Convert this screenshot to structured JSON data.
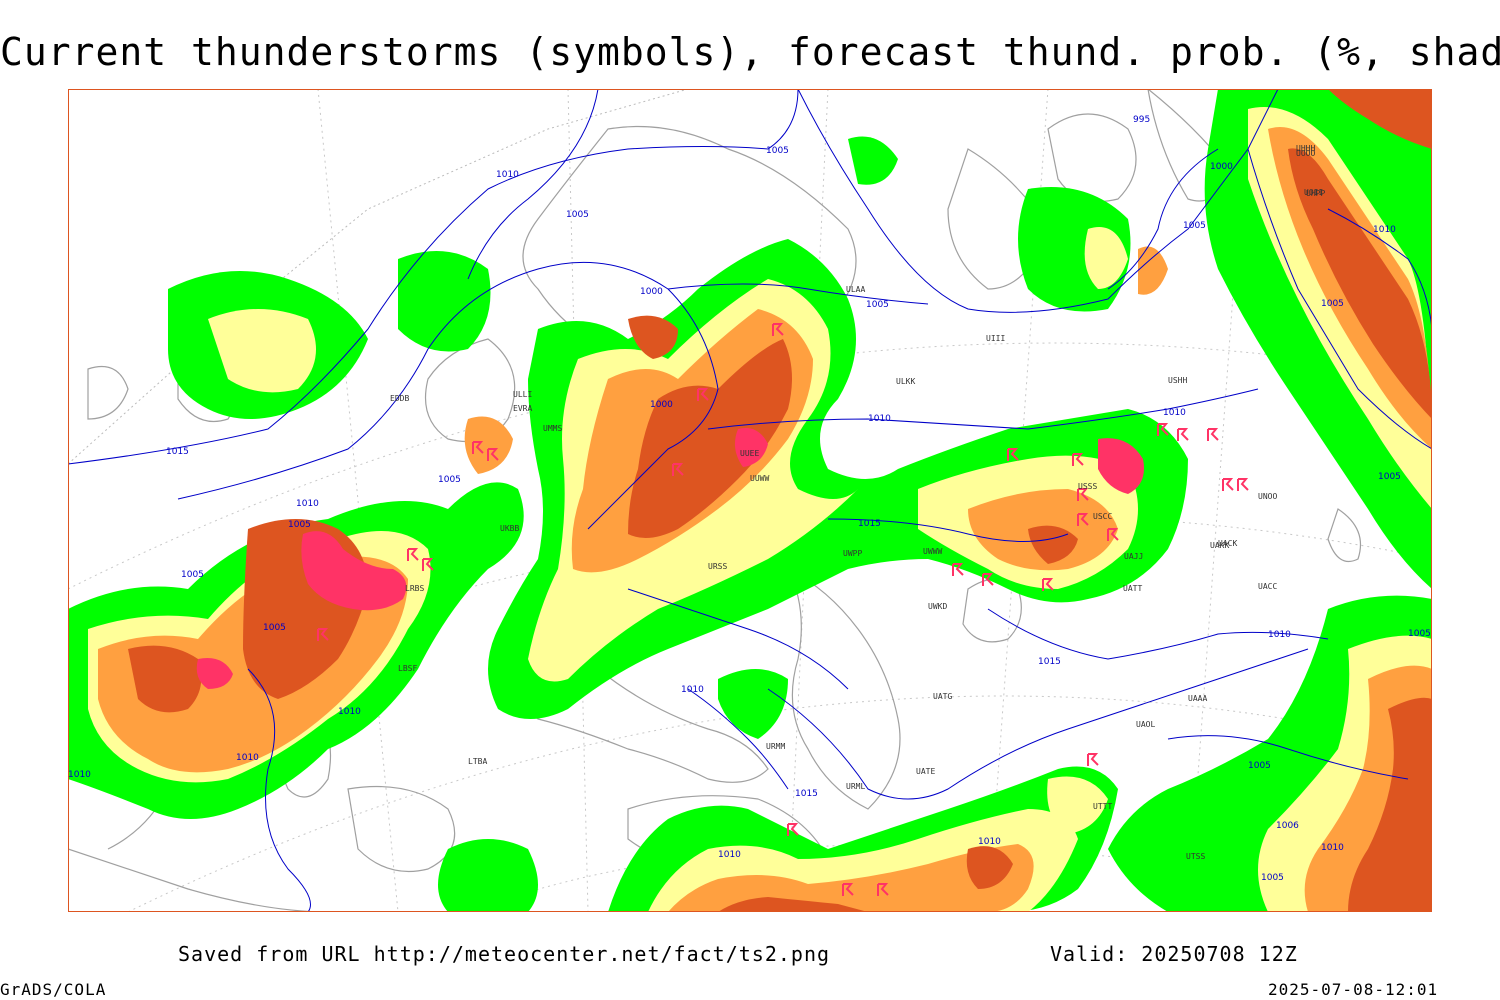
{
  "title": "Current thunderstorms (symbols), forecast thund. prob. (%, shaded)",
  "footer": {
    "saved": "Saved from URL http://meteocenter.net/fact/ts2.png",
    "valid": "Valid: 20250708 12Z",
    "software": "GrADS/COLA",
    "generated": "2025-07-08-12:01"
  },
  "colors": {
    "low": "#00ff00",
    "mid": "#ffff99",
    "midhigh": "#ffa040",
    "high": "#dd5520",
    "veryhigh": "#a01810",
    "storm_symbol": "#ff3366",
    "isobar": "#0000c8",
    "coast": "#a0a0a0"
  },
  "isobar_labels": [
    "995",
    "1000",
    "1005",
    "1010",
    "1015"
  ],
  "stations": [
    "EDDB",
    "EVRA",
    "UMMS",
    "UUEE",
    "UUWW",
    "URSS",
    "UKBB",
    "UWPP",
    "UWWW",
    "UWKD",
    "USSS",
    "USCC",
    "UNOO",
    "UACC",
    "UAAA",
    "UATT",
    "UTTT",
    "UTSS",
    "UHHH",
    "UHPP",
    "LTBA",
    "LBSF",
    "LRBS",
    "URMM",
    "URML",
    "ULLI",
    "ULAA",
    "UOOO",
    "UOII",
    "USHH",
    "UIII",
    "UAKK",
    "UACK",
    "UAJJ",
    "UAOL",
    "UATE",
    "UATG",
    "ULKK"
  ]
}
